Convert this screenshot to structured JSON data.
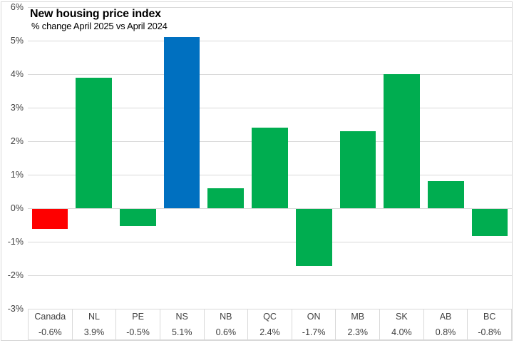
{
  "header": {
    "title": "New housing price index",
    "subtitle": "% change April 2025 vs April 2024"
  },
  "chart_data": {
    "type": "bar",
    "title": "New housing price index",
    "subtitle": "% change April 2025 vs April 2024",
    "categories": [
      "Canada",
      "NL",
      "PE",
      "NS",
      "NB",
      "QC",
      "ON",
      "MB",
      "SK",
      "AB",
      "BC"
    ],
    "values": [
      -0.6,
      3.9,
      -0.5,
      5.1,
      0.6,
      2.4,
      -1.7,
      2.3,
      4.0,
      0.8,
      -0.8
    ],
    "value_labels": [
      "-0.6%",
      "3.9%",
      "-0.5%",
      "5.1%",
      "0.6%",
      "2.4%",
      "-1.7%",
      "2.3%",
      "4.0%",
      "0.8%",
      "-0.8%"
    ],
    "bar_colors": [
      "#fe0000",
      "#00ad50",
      "#00ad50",
      "#0070c0",
      "#00ad50",
      "#00ad50",
      "#00ad50",
      "#00ad50",
      "#00ad50",
      "#00ad50",
      "#00ad50"
    ],
    "xlabel": "",
    "ylabel": "",
    "ylim": [
      -3,
      6
    ],
    "ytick_step": 1,
    "ytick_labels": [
      "6%",
      "5%",
      "4%",
      "3%",
      "2%",
      "1%",
      "0%",
      "-1%",
      "-2%",
      "-3%"
    ],
    "grid": true,
    "legend": "none",
    "colors": {
      "canada_bar": "#fe0000",
      "province_bar": "#00ad50",
      "highlight_bar": "#0070c0",
      "gridline": "#d9d9d9",
      "axis_text": "#404040",
      "title_text": "#000000"
    }
  }
}
